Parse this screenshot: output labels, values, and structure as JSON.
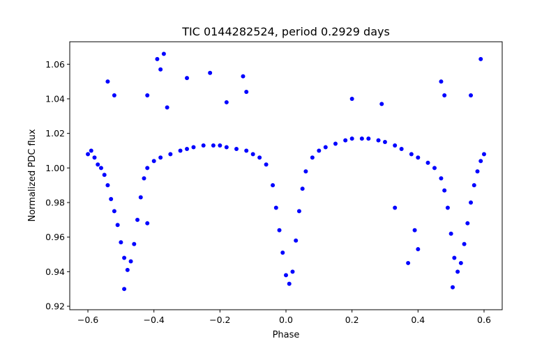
{
  "chart_data": {
    "type": "scatter",
    "title": "TIC 0144282524, period 0.2929 days",
    "xlabel": "Phase",
    "ylabel": "Normalized PDC flux",
    "xlim": [
      -0.655,
      0.655
    ],
    "ylim": [
      0.918,
      1.073
    ],
    "grid": false,
    "marker_color": "#0000ff",
    "x_ticks": [
      -0.6,
      -0.4,
      -0.2,
      0.0,
      0.2,
      0.4,
      0.6
    ],
    "x_tick_labels": [
      "−0.6",
      "−0.4",
      "−0.2",
      "0.0",
      "0.2",
      "0.4",
      "0.6"
    ],
    "y_ticks": [
      0.92,
      0.94,
      0.96,
      0.98,
      1.0,
      1.02,
      1.04,
      1.06
    ],
    "y_tick_labels": [
      "0.92",
      "0.94",
      "0.96",
      "0.98",
      "1.00",
      "1.02",
      "1.04",
      "1.06"
    ],
    "series": [
      {
        "points": [
          [
            -0.6,
            1.008
          ],
          [
            -0.59,
            1.01
          ],
          [
            -0.58,
            1.006
          ],
          [
            -0.57,
            1.002
          ],
          [
            -0.56,
            1.0
          ],
          [
            -0.55,
            0.996
          ],
          [
            -0.54,
            0.99
          ],
          [
            -0.53,
            0.982
          ],
          [
            -0.52,
            0.975
          ],
          [
            -0.51,
            0.967
          ],
          [
            -0.5,
            0.957
          ],
          [
            -0.49,
            0.948
          ],
          [
            -0.48,
            0.941
          ],
          [
            -0.47,
            0.946
          ],
          [
            -0.46,
            0.956
          ],
          [
            -0.45,
            0.97
          ],
          [
            -0.44,
            0.983
          ],
          [
            -0.43,
            0.994
          ],
          [
            -0.42,
            1.0
          ],
          [
            -0.4,
            1.004
          ],
          [
            -0.38,
            1.006
          ],
          [
            -0.35,
            1.008
          ],
          [
            -0.32,
            1.01
          ],
          [
            -0.3,
            1.011
          ],
          [
            -0.28,
            1.012
          ],
          [
            -0.25,
            1.013
          ],
          [
            -0.22,
            1.013
          ],
          [
            -0.2,
            1.013
          ],
          [
            -0.18,
            1.012
          ],
          [
            -0.15,
            1.011
          ],
          [
            -0.12,
            1.01
          ],
          [
            -0.1,
            1.008
          ],
          [
            -0.08,
            1.006
          ],
          [
            -0.06,
            1.002
          ],
          [
            -0.04,
            0.99
          ],
          [
            -0.03,
            0.977
          ],
          [
            -0.02,
            0.964
          ],
          [
            -0.01,
            0.951
          ],
          [
            0.0,
            0.938
          ],
          [
            0.01,
            0.933
          ],
          [
            0.02,
            0.94
          ],
          [
            0.03,
            0.958
          ],
          [
            0.04,
            0.975
          ],
          [
            0.05,
            0.988
          ],
          [
            0.06,
            0.998
          ],
          [
            0.08,
            1.006
          ],
          [
            0.1,
            1.01
          ],
          [
            0.12,
            1.012
          ],
          [
            0.15,
            1.014
          ],
          [
            0.18,
            1.016
          ],
          [
            0.2,
            1.017
          ],
          [
            0.23,
            1.017
          ],
          [
            0.25,
            1.017
          ],
          [
            0.28,
            1.016
          ],
          [
            0.3,
            1.015
          ],
          [
            0.33,
            1.013
          ],
          [
            0.35,
            1.011
          ],
          [
            0.38,
            1.008
          ],
          [
            0.4,
            1.006
          ],
          [
            0.43,
            1.003
          ],
          [
            0.45,
            1.0
          ],
          [
            0.47,
            0.994
          ],
          [
            0.48,
            0.987
          ],
          [
            0.49,
            0.977
          ],
          [
            0.5,
            0.962
          ],
          [
            0.51,
            0.948
          ],
          [
            0.52,
            0.94
          ],
          [
            0.53,
            0.945
          ],
          [
            0.54,
            0.956
          ],
          [
            0.55,
            0.968
          ],
          [
            0.56,
            0.98
          ],
          [
            0.57,
            0.99
          ],
          [
            0.58,
            0.998
          ],
          [
            0.59,
            1.004
          ],
          [
            0.6,
            1.008
          ],
          [
            -0.54,
            1.05
          ],
          [
            -0.52,
            1.042
          ],
          [
            -0.42,
            1.042
          ],
          [
            -0.39,
            1.063
          ],
          [
            -0.37,
            1.066
          ],
          [
            -0.38,
            1.057
          ],
          [
            -0.36,
            1.035
          ],
          [
            -0.3,
            1.052
          ],
          [
            -0.23,
            1.055
          ],
          [
            -0.13,
            1.053
          ],
          [
            -0.12,
            1.044
          ],
          [
            0.47,
            1.05
          ],
          [
            0.48,
            1.042
          ],
          [
            0.56,
            1.042
          ],
          [
            0.59,
            1.063
          ],
          [
            0.4,
            0.953
          ],
          [
            0.37,
            0.945
          ],
          [
            0.39,
            0.964
          ],
          [
            0.33,
            0.977
          ],
          [
            -0.49,
            0.93
          ],
          [
            0.505,
            0.931
          ],
          [
            -0.42,
            0.968
          ],
          [
            0.2,
            1.04
          ],
          [
            0.29,
            1.037
          ],
          [
            -0.18,
            1.038
          ]
        ]
      }
    ]
  }
}
